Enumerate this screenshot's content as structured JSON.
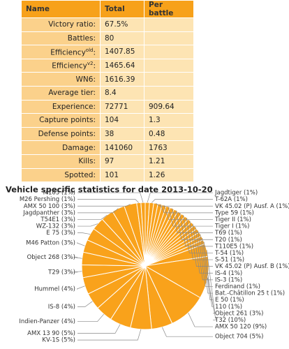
{
  "table": {
    "header": [
      "Name",
      "Total",
      "Per battle"
    ],
    "rows": [
      {
        "name": "Victory ratio:",
        "cells": [
          "67.5%"
        ]
      },
      {
        "name": "Battles:",
        "cells": [
          "80"
        ]
      },
      {
        "name": "Efficiency",
        "sup": "old",
        "suffix": ":",
        "cells": [
          "1407.85"
        ]
      },
      {
        "name": "Efficiency",
        "sup": "v2",
        "suffix": ":",
        "cells": [
          "1465.64"
        ]
      },
      {
        "name": "WN6:",
        "cells": [
          "1616.39"
        ]
      },
      {
        "name": "Average tier:",
        "cells": [
          "8.4"
        ]
      },
      {
        "name": "Experience:",
        "cells": [
          "72771",
          "909.64"
        ]
      },
      {
        "name": "Capture points:",
        "cells": [
          "104",
          "1.3"
        ]
      },
      {
        "name": "Defense points:",
        "cells": [
          "38",
          "0.48"
        ]
      },
      {
        "name": "Damage:",
        "cells": [
          "141060",
          "1763"
        ]
      },
      {
        "name": "Kills:",
        "cells": [
          "97",
          "1.21"
        ]
      },
      {
        "name": "Spotted:",
        "cells": [
          "101",
          "1.26"
        ]
      }
    ]
  },
  "chart_data": {
    "type": "pie",
    "title": "Vehicle specific statistics for date 2013-10-20",
    "color": "#f9a21b",
    "categories": [
      "Jagdtiger (1%)",
      "T-62A (1%)",
      "VK 45.02 (P) Ausf. A (1%)",
      "Type 59 (1%)",
      "Tiger II (1%)",
      "Tiger I (1%)",
      "T69 (1%)",
      "T20 (1%)",
      "T110E5 (1%)",
      "T-54 (1%)",
      "S-51 (1%)",
      "VK 45.02 (P) Ausf. B (1%)",
      "IS-4 (1%)",
      "IS-3 (1%)",
      "Ferdinand (1%)",
      "Bat.-Châtillon 25 t (1%)",
      "E 50 (1%)",
      "110 (1%)",
      "Object 261 (3%)",
      "T32 (10%)",
      "AMX 50 120 (9%)",
      "Object 704 (5%)",
      "KV-1S (5%)",
      "AMX 13 90 (5%)",
      "Indien-Panzer (4%)",
      "IS-8 (4%)",
      "Hummel (4%)",
      "T29 (3%)",
      "Object 268 (3%)",
      "M46 Patton (3%)",
      "E 75 (3%)",
      "WZ-132 (3%)",
      "T54E1 (3%)",
      "Jagdpanther (3%)",
      "AMX 50 100 (3%)",
      "M26 Pershing (1%)",
      "M103 (1%)"
    ],
    "values": [
      1,
      1,
      1,
      1,
      1,
      1,
      1,
      1,
      1,
      1,
      1,
      1,
      1,
      1,
      1,
      1,
      1,
      1,
      3,
      10,
      9,
      5,
      5,
      5,
      4,
      4,
      4,
      3,
      3,
      3,
      3,
      3,
      3,
      3,
      3,
      1,
      1
    ]
  }
}
